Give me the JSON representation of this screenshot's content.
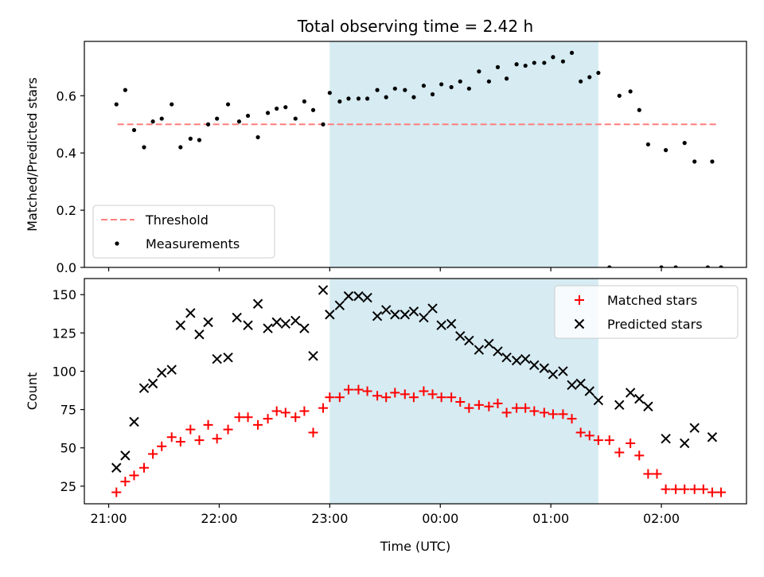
{
  "figure": {
    "title": "Total observing time = 2.42 h"
  },
  "chart_data": [
    {
      "type": "scatter",
      "title": "Total observing time = 2.42 h",
      "ylabel": "Matched/Predicted stars",
      "xlabel": "",
      "x_unit": "hours since 21:00 UTC",
      "xlim": [
        -0.22,
        5.77
      ],
      "ylim": [
        0.0,
        0.79
      ],
      "yticks": [
        0.0,
        0.2,
        0.4,
        0.6
      ],
      "ytick_labels": [
        "0.0",
        "0.2",
        "0.4",
        "0.6"
      ],
      "highlight_span": {
        "x": [
          2.0,
          4.43
        ],
        "color": "#add8e6"
      },
      "grid": false,
      "legend_placement": "lower left",
      "threshold": {
        "name": "Threshold",
        "value": 0.5,
        "x": [
          0.08,
          5.52
        ],
        "color": "#ff7f7f"
      },
      "series": [
        {
          "name": "Measurements",
          "color": "#000000",
          "points": [
            [
              0.07,
              0.57
            ],
            [
              0.15,
              0.62
            ],
            [
              0.23,
              0.48
            ],
            [
              0.32,
              0.42
            ],
            [
              0.4,
              0.51
            ],
            [
              0.48,
              0.52
            ],
            [
              0.57,
              0.57
            ],
            [
              0.65,
              0.42
            ],
            [
              0.74,
              0.45
            ],
            [
              0.82,
              0.445
            ],
            [
              0.9,
              0.5
            ],
            [
              0.98,
              0.52
            ],
            [
              1.08,
              0.57
            ],
            [
              1.18,
              0.51
            ],
            [
              1.26,
              0.53
            ],
            [
              1.35,
              0.455
            ],
            [
              1.44,
              0.54
            ],
            [
              1.52,
              0.555
            ],
            [
              1.6,
              0.56
            ],
            [
              1.69,
              0.52
            ],
            [
              1.77,
              0.58
            ],
            [
              1.85,
              0.55
            ],
            [
              1.94,
              0.5
            ],
            [
              2.0,
              0.61
            ],
            [
              2.09,
              0.58
            ],
            [
              2.17,
              0.59
            ],
            [
              2.26,
              0.59
            ],
            [
              2.34,
              0.59
            ],
            [
              2.43,
              0.62
            ],
            [
              2.51,
              0.595
            ],
            [
              2.59,
              0.625
            ],
            [
              2.68,
              0.62
            ],
            [
              2.76,
              0.595
            ],
            [
              2.85,
              0.635
            ],
            [
              2.93,
              0.605
            ],
            [
              3.01,
              0.64
            ],
            [
              3.1,
              0.63
            ],
            [
              3.18,
              0.65
            ],
            [
              3.26,
              0.625
            ],
            [
              3.35,
              0.685
            ],
            [
              3.44,
              0.65
            ],
            [
              3.52,
              0.7
            ],
            [
              3.6,
              0.66
            ],
            [
              3.69,
              0.71
            ],
            [
              3.77,
              0.705
            ],
            [
              3.85,
              0.715
            ],
            [
              3.94,
              0.715
            ],
            [
              4.02,
              0.735
            ],
            [
              4.11,
              0.72
            ],
            [
              4.19,
              0.75
            ],
            [
              4.27,
              0.65
            ],
            [
              4.35,
              0.665
            ],
            [
              4.43,
              0.68
            ],
            [
              4.53,
              0.0
            ],
            [
              4.62,
              0.6
            ],
            [
              4.72,
              0.615
            ],
            [
              4.8,
              0.55
            ],
            [
              4.88,
              0.43
            ],
            [
              5.0,
              0.0
            ],
            [
              5.04,
              0.41
            ],
            [
              5.13,
              0.0
            ],
            [
              5.21,
              0.435
            ],
            [
              5.3,
              0.37
            ],
            [
              5.42,
              0.0
            ],
            [
              5.46,
              0.37
            ],
            [
              5.54,
              0.0
            ]
          ]
        }
      ]
    },
    {
      "type": "scatter",
      "title": "",
      "ylabel": "Count",
      "xlabel": "Time (UTC)",
      "x_unit": "hours since 21:00 UTC",
      "xlim": [
        -0.22,
        5.77
      ],
      "ylim": [
        13.5,
        160.5
      ],
      "yticks": [
        25,
        50,
        75,
        100,
        125,
        150
      ],
      "ytick_labels": [
        "25",
        "50",
        "75",
        "100",
        "125",
        "150"
      ],
      "xticks": [
        0,
        1,
        2,
        3,
        4,
        5
      ],
      "xtick_labels": [
        "21:00",
        "22:00",
        "23:00",
        "00:00",
        "01:00",
        "02:00"
      ],
      "highlight_span": {
        "x": [
          2.0,
          4.43
        ],
        "color": "#add8e6"
      },
      "grid": false,
      "legend_placement": "upper right",
      "series": [
        {
          "name": "Matched stars",
          "marker": "plus",
          "color": "#ff0000",
          "points": [
            [
              0.07,
              21
            ],
            [
              0.15,
              28
            ],
            [
              0.23,
              32
            ],
            [
              0.32,
              37
            ],
            [
              0.4,
              46
            ],
            [
              0.48,
              51
            ],
            [
              0.57,
              57
            ],
            [
              0.65,
              54
            ],
            [
              0.74,
              62
            ],
            [
              0.82,
              55
            ],
            [
              0.9,
              65
            ],
            [
              0.98,
              56
            ],
            [
              1.08,
              62
            ],
            [
              1.18,
              70
            ],
            [
              1.26,
              70
            ],
            [
              1.35,
              65
            ],
            [
              1.44,
              69
            ],
            [
              1.52,
              74
            ],
            [
              1.6,
              73
            ],
            [
              1.69,
              70
            ],
            [
              1.77,
              74
            ],
            [
              1.85,
              60
            ],
            [
              1.94,
              76
            ],
            [
              2.0,
              83
            ],
            [
              2.09,
              83
            ],
            [
              2.17,
              88
            ],
            [
              2.26,
              88
            ],
            [
              2.34,
              87
            ],
            [
              2.43,
              84
            ],
            [
              2.51,
              83
            ],
            [
              2.59,
              86
            ],
            [
              2.68,
              85
            ],
            [
              2.76,
              83
            ],
            [
              2.85,
              87
            ],
            [
              2.93,
              85
            ],
            [
              3.01,
              83
            ],
            [
              3.1,
              83
            ],
            [
              3.18,
              80
            ],
            [
              3.26,
              76
            ],
            [
              3.35,
              78
            ],
            [
              3.44,
              77
            ],
            [
              3.52,
              79
            ],
            [
              3.6,
              73
            ],
            [
              3.69,
              76
            ],
            [
              3.77,
              76
            ],
            [
              3.85,
              74
            ],
            [
              3.94,
              73
            ],
            [
              4.02,
              72
            ],
            [
              4.11,
              72
            ],
            [
              4.19,
              69
            ],
            [
              4.27,
              60
            ],
            [
              4.35,
              58
            ],
            [
              4.43,
              55
            ],
            [
              4.53,
              55
            ],
            [
              4.62,
              47
            ],
            [
              4.72,
              53
            ],
            [
              4.8,
              45
            ],
            [
              4.88,
              33
            ],
            [
              4.96,
              33
            ],
            [
              5.04,
              23
            ],
            [
              5.13,
              23
            ],
            [
              5.21,
              23
            ],
            [
              5.3,
              23
            ],
            [
              5.38,
              23
            ],
            [
              5.46,
              21
            ],
            [
              5.54,
              21
            ]
          ]
        },
        {
          "name": "Predicted stars",
          "marker": "x",
          "color": "#000000",
          "points": [
            [
              0.07,
              37
            ],
            [
              0.15,
              45
            ],
            [
              0.23,
              67
            ],
            [
              0.32,
              89
            ],
            [
              0.4,
              92
            ],
            [
              0.48,
              99
            ],
            [
              0.57,
              101
            ],
            [
              0.65,
              130
            ],
            [
              0.74,
              138
            ],
            [
              0.82,
              124
            ],
            [
              0.9,
              132
            ],
            [
              0.98,
              108
            ],
            [
              1.08,
              109
            ],
            [
              1.16,
              135
            ],
            [
              1.26,
              130
            ],
            [
              1.35,
              144
            ],
            [
              1.44,
              128
            ],
            [
              1.52,
              132
            ],
            [
              1.6,
              131
            ],
            [
              1.69,
              133
            ],
            [
              1.77,
              128
            ],
            [
              1.85,
              110
            ],
            [
              1.94,
              153
            ],
            [
              2.0,
              137
            ],
            [
              2.09,
              143
            ],
            [
              2.17,
              149
            ],
            [
              2.26,
              149
            ],
            [
              2.34,
              148
            ],
            [
              2.43,
              136
            ],
            [
              2.51,
              140
            ],
            [
              2.59,
              137
            ],
            [
              2.68,
              137
            ],
            [
              2.76,
              139
            ],
            [
              2.85,
              135
            ],
            [
              2.93,
              141
            ],
            [
              3.01,
              130
            ],
            [
              3.1,
              131
            ],
            [
              3.18,
              123
            ],
            [
              3.26,
              120
            ],
            [
              3.35,
              114
            ],
            [
              3.44,
              118
            ],
            [
              3.52,
              113
            ],
            [
              3.6,
              109
            ],
            [
              3.69,
              107
            ],
            [
              3.77,
              108
            ],
            [
              3.85,
              104
            ],
            [
              3.94,
              102
            ],
            [
              4.02,
              98
            ],
            [
              4.11,
              100
            ],
            [
              4.19,
              91
            ],
            [
              4.27,
              92
            ],
            [
              4.35,
              87
            ],
            [
              4.43,
              81
            ],
            [
              4.62,
              78
            ],
            [
              4.72,
              86
            ],
            [
              4.8,
              82
            ],
            [
              4.88,
              77
            ],
            [
              5.04,
              56
            ],
            [
              5.21,
              53
            ],
            [
              5.3,
              63
            ],
            [
              5.46,
              57
            ]
          ]
        }
      ]
    }
  ]
}
